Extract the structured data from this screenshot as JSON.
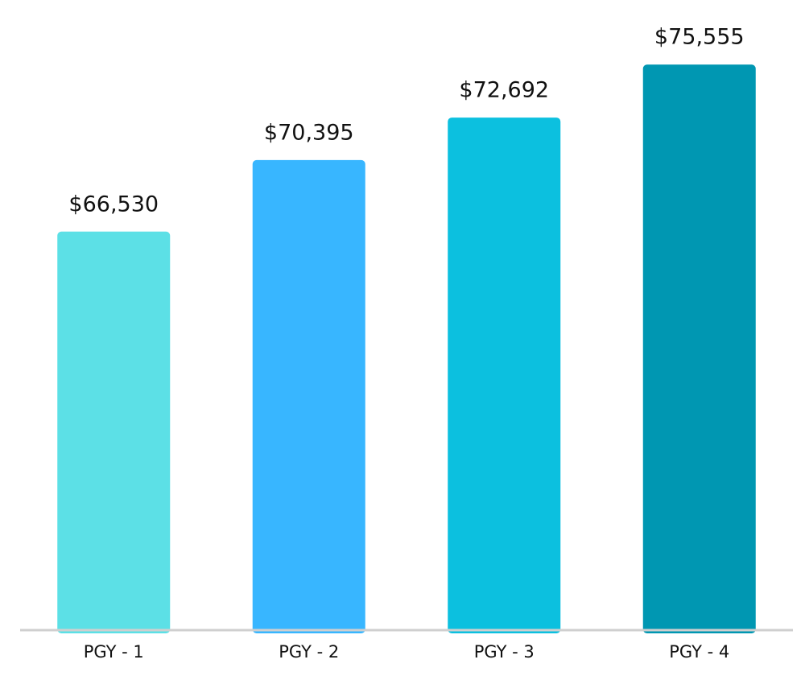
{
  "chart_data": {
    "type": "bar",
    "categories": [
      "PGY - 1",
      "PGY - 2",
      "PGY - 3",
      "PGY - 4"
    ],
    "values": [
      66530,
      70395,
      72692,
      75555
    ],
    "value_labels": [
      "$66,530",
      "$70,395",
      "$72,692",
      "$75,555"
    ],
    "colors": [
      "#5ce0e6",
      "#38b6ff",
      "#0cc0df",
      "#0097b2"
    ],
    "ylim": [
      45000,
      76000
    ]
  }
}
